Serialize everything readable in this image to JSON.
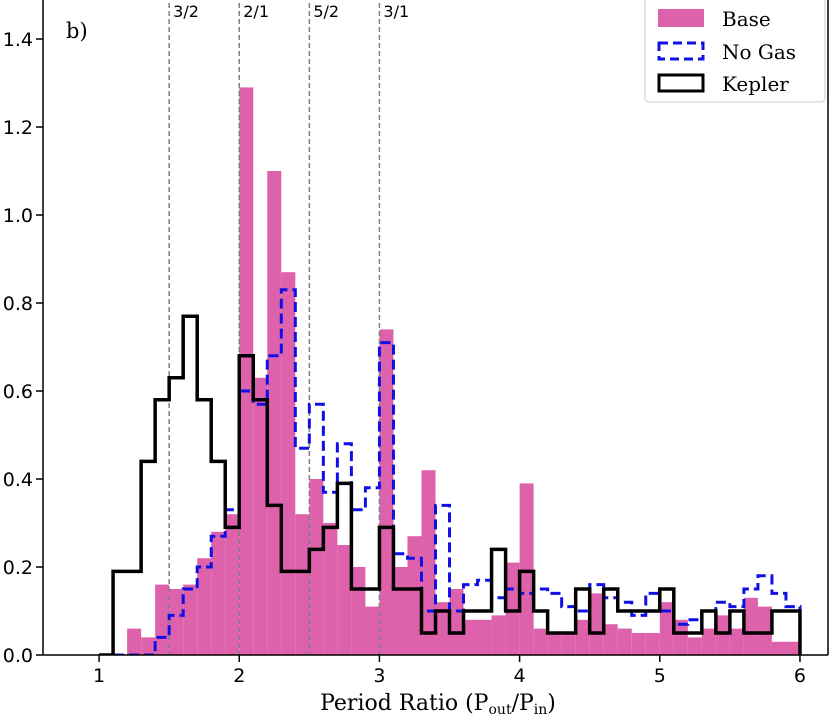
{
  "chart_data": {
    "type": "histogram",
    "panel_label": "b)",
    "xlabel": "Period Ratio (P",
    "xlabel_sub1": "out",
    "xlabel_mid": "/P",
    "xlabel_sub2": "in",
    "xlabel_end": ")",
    "xlim": [
      0.6,
      6.2
    ],
    "ylim": [
      0,
      1.5
    ],
    "xticks": [
      1,
      2,
      3,
      4,
      5,
      6
    ],
    "yticks": [
      0.0,
      0.2,
      0.4,
      0.6,
      0.8,
      1.0,
      1.2,
      1.4
    ],
    "bin_width": 0.1,
    "bins_start": 1.0,
    "resonances": [
      {
        "label": "3/2",
        "x": 1.5
      },
      {
        "label": "2/1",
        "x": 2.0
      },
      {
        "label": "5/2",
        "x": 2.5
      },
      {
        "label": "3/1",
        "x": 3.0
      }
    ],
    "legend_position": "top-right",
    "series": [
      {
        "name": "Base",
        "style": "filled",
        "color": "#dd62ab",
        "values": [
          0,
          0,
          0.06,
          0.04,
          0.16,
          0.15,
          0.16,
          0.22,
          0.28,
          0.32,
          1.29,
          0.63,
          1.1,
          0.87,
          0.32,
          0.4,
          0.3,
          0.25,
          0.2,
          0.11,
          0.74,
          0.2,
          0.27,
          0.42,
          0.12,
          0.15,
          0.08,
          0.08,
          0.09,
          0.21,
          0.39,
          0.06,
          0.05,
          0.05,
          0.08,
          0.14,
          0.07,
          0.06,
          0.05,
          0.05,
          0.12,
          0.08,
          0.04,
          0.06,
          0.09,
          0.06,
          0.13,
          0.11,
          0.03,
          0.03
        ]
      },
      {
        "name": "No Gas",
        "style": "dashed",
        "color": "#1010e6",
        "values": [
          0,
          0,
          0,
          0,
          0.04,
          0.09,
          0.15,
          0.2,
          0.27,
          0.33,
          0.6,
          0.57,
          0.68,
          0.83,
          0.47,
          0.57,
          0.37,
          0.48,
          0.33,
          0.38,
          0.71,
          0.23,
          0.22,
          0.1,
          0.34,
          0.1,
          0.16,
          0.17,
          0.13,
          0.15,
          0.14,
          0.15,
          0.14,
          0.11,
          0.1,
          0.16,
          0.13,
          0.12,
          0.09,
          0.14,
          0.1,
          0.07,
          0.08,
          0.1,
          0.12,
          0.11,
          0.15,
          0.18,
          0.14,
          0.11
        ]
      },
      {
        "name": "Kepler",
        "style": "step",
        "color": "#000000",
        "values": [
          0,
          0.19,
          0.19,
          0.44,
          0.58,
          0.63,
          0.77,
          0.58,
          0.44,
          0.29,
          0.68,
          0.58,
          0.34,
          0.19,
          0.19,
          0.24,
          0.29,
          0.39,
          0.15,
          0.15,
          0.29,
          0.15,
          0.15,
          0.05,
          0.1,
          0.05,
          0.1,
          0.1,
          0.24,
          0.1,
          0.19,
          0.1,
          0.05,
          0.05,
          0.15,
          0.05,
          0.15,
          0.1,
          0.1,
          0.1,
          0.15,
          0.05,
          0.05,
          0.1,
          0.05,
          0.1,
          0.05,
          0.05,
          0.1,
          0.1
        ]
      }
    ]
  }
}
